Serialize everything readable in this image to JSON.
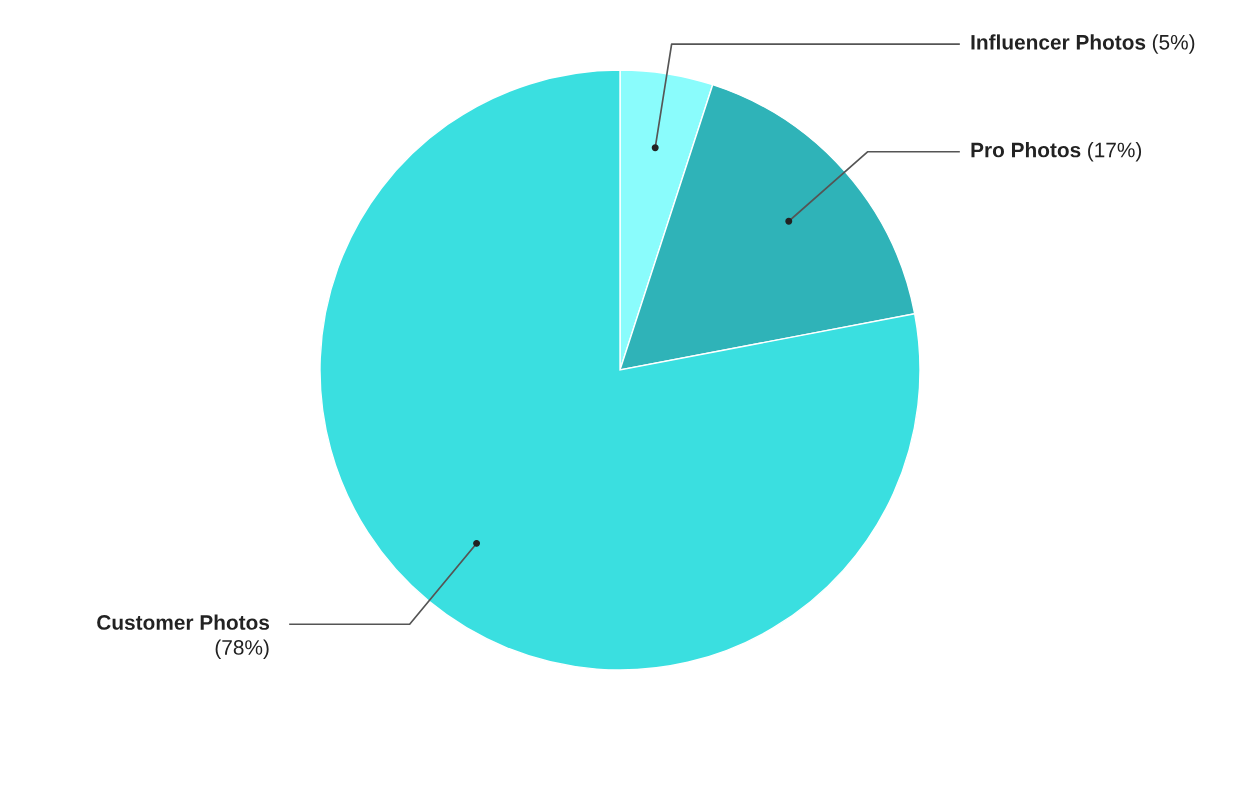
{
  "chart_data": {
    "type": "pie",
    "categories": [
      "Influencer Photos",
      "Pro Photos",
      "Customer Photos"
    ],
    "values": [
      5,
      17,
      78
    ],
    "value_labels": [
      "(5%)",
      "(17%)",
      "(78%)"
    ],
    "colors": [
      "#8afcfc",
      "#2fb3b8",
      "#3adfe0"
    ],
    "legend": false
  }
}
